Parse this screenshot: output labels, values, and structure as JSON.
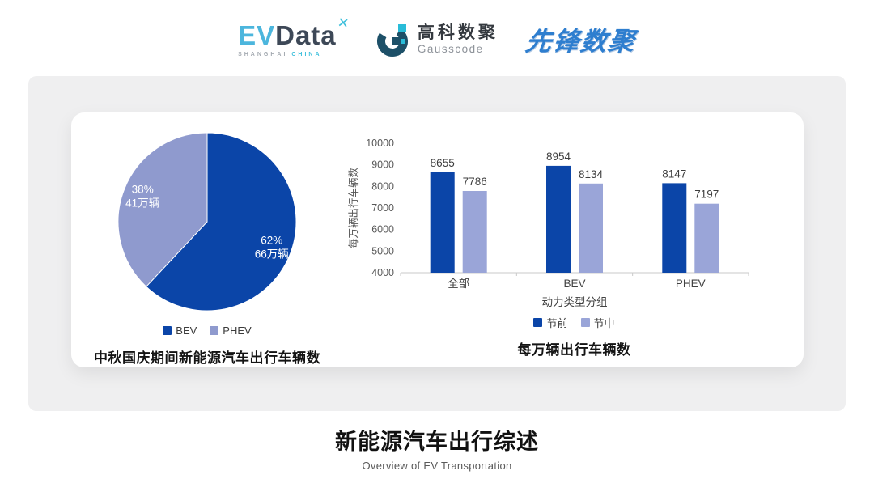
{
  "header": {
    "evdata_logo": {
      "ev": "EV",
      "data": "Data",
      "mark_icon": "x-spark",
      "mark_glyph": "✕",
      "subtext_left": "SHANGHAI",
      "subtext_right": "CHINA"
    },
    "gausscode_logo": {
      "cn": "高科数聚",
      "en": "Gausscode",
      "mark_icon": "g-ring"
    },
    "pioneer_logo": {
      "text": "先锋数聚"
    }
  },
  "colors": {
    "series_dark_blue": "#0b45a8",
    "series_light_periwinkle": "#9aa5d8",
    "pie_light_periwinkle": "#8f9ace",
    "panel_gray": "#efeff0",
    "logo_cyan": "#3fc0dc",
    "pioneer_blue": "#2e7ecf"
  },
  "chart_data": [
    {
      "type": "pie",
      "title": "中秋国庆期间新能源汽车出行车辆数",
      "slices": [
        {
          "label": "BEV",
          "percent": 62,
          "value_label": "66万辆",
          "color": "#0b45a8"
        },
        {
          "label": "PHEV",
          "percent": 38,
          "value_label": "41万辆",
          "color": "#8f9ace"
        }
      ],
      "start_angle": "12-oclock-clockwise",
      "legend_position": "bottom"
    },
    {
      "type": "bar",
      "title": "每万辆出行车辆数",
      "categories": [
        "全部",
        "BEV",
        "PHEV"
      ],
      "series": [
        {
          "name": "节前",
          "values": [
            8655,
            8954,
            8147
          ],
          "color": "#0b45a8"
        },
        {
          "name": "节中",
          "values": [
            7786,
            8134,
            7197
          ],
          "color": "#9aa5d8"
        }
      ],
      "xlabel": "动力类型分组",
      "ylabel": "每万辆出行车辆数",
      "ylim": [
        4000,
        10000
      ],
      "ytick_step": 1000,
      "grid": false,
      "legend_position": "bottom"
    }
  ],
  "footer": {
    "title": "新能源汽车出行综述",
    "subtitle": "Overview of EV Transportation"
  }
}
